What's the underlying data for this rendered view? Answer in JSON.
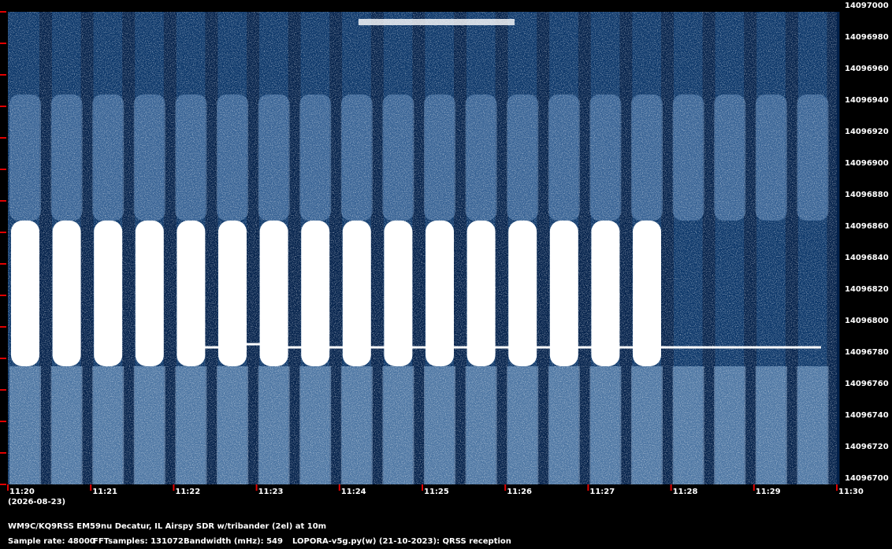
{
  "chart_data": {
    "type": "spectrogram",
    "ylim": [
      14096700,
      14097000
    ],
    "yticks": [
      14097000,
      14096980,
      14096960,
      14096940,
      14096920,
      14096900,
      14096880,
      14096860,
      14096840,
      14096820,
      14096800,
      14096780,
      14096760,
      14096740,
      14096720,
      14096700
    ],
    "xticks": [
      "11:20",
      "11:21",
      "11:22",
      "11:23",
      "11:24",
      "11:25",
      "11:26",
      "11:27",
      "11:28",
      "11:29",
      "11:30"
    ],
    "date": "(2026-08-23)",
    "station": "WM9C/KQ9RSS EM59nu Decatur, IL  Airspy SDR w/tribander (2el) at 10m",
    "sample_rate": "Sample rate: 48000",
    "fft_samples": "FFTsamples: 131072",
    "bandwidth": "Bandwidth (mHz): 549",
    "software": "LOPORA-v5g.py(w) (21-10-2023): QRSS reception"
  }
}
